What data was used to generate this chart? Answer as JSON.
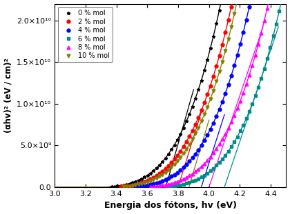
{
  "title": "",
  "xlabel": "Energia dos fótons, hv (eV)",
  "ylabel": "(αhv)² (eV / cm)²",
  "xlim": [
    3.0,
    4.5
  ],
  "ylim": [
    0,
    22000000000.0
  ],
  "series": [
    {
      "label": "0 % mol",
      "color": "#000000",
      "marker": "*",
      "E_rise": 3.2,
      "k": 35000000000.0,
      "n": 3.5,
      "E_bg": 3.72,
      "tan_slope": 65000000000.0,
      "tan_x0": 3.35,
      "tan_x1": 3.9
    },
    {
      "label": "2 % mol",
      "color": "#ff0000",
      "marker": "o",
      "E_rise": 3.25,
      "k": 32000000000.0,
      "n": 3.5,
      "E_bg": 3.8,
      "tan_slope": 60000000000.0,
      "tan_x0": 3.45,
      "tan_x1": 3.95
    },
    {
      "label": "4 % mol",
      "color": "#0000ff",
      "marker": "o",
      "E_rise": 3.35,
      "k": 30000000000.0,
      "n": 3.5,
      "E_bg": 3.95,
      "tan_slope": 58000000000.0,
      "tan_x0": 3.6,
      "tan_x1": 4.1
    },
    {
      "label": "6 % mol",
      "color": "#008B8B",
      "marker": "s",
      "E_rise": 3.55,
      "k": 30000000000.0,
      "n": 3.5,
      "E_bg": 4.1,
      "tan_slope": 55000000000.0,
      "tan_x0": 3.72,
      "tan_x1": 4.45
    },
    {
      "label": "8 % mol",
      "color": "#ff00ff",
      "marker": "^",
      "E_rise": 3.45,
      "k": 28000000000.0,
      "n": 3.5,
      "E_bg": 4.0,
      "tan_slope": 55000000000.0,
      "tan_x0": 3.65,
      "tan_x1": 4.35
    },
    {
      "label": "10 % mol",
      "color": "#808000",
      "marker": "v",
      "E_rise": 3.28,
      "k": 32000000000.0,
      "n": 3.5,
      "E_bg": 3.87,
      "tan_slope": 62000000000.0,
      "tan_x0": 3.5,
      "tan_x1": 4.0
    }
  ],
  "yticks": [
    0,
    5000000000.0,
    10000000000.0,
    15000000000.0,
    20000000000.0
  ],
  "xticks": [
    3.0,
    3.2,
    3.4,
    3.6,
    3.8,
    4.0,
    4.2,
    4.4
  ]
}
